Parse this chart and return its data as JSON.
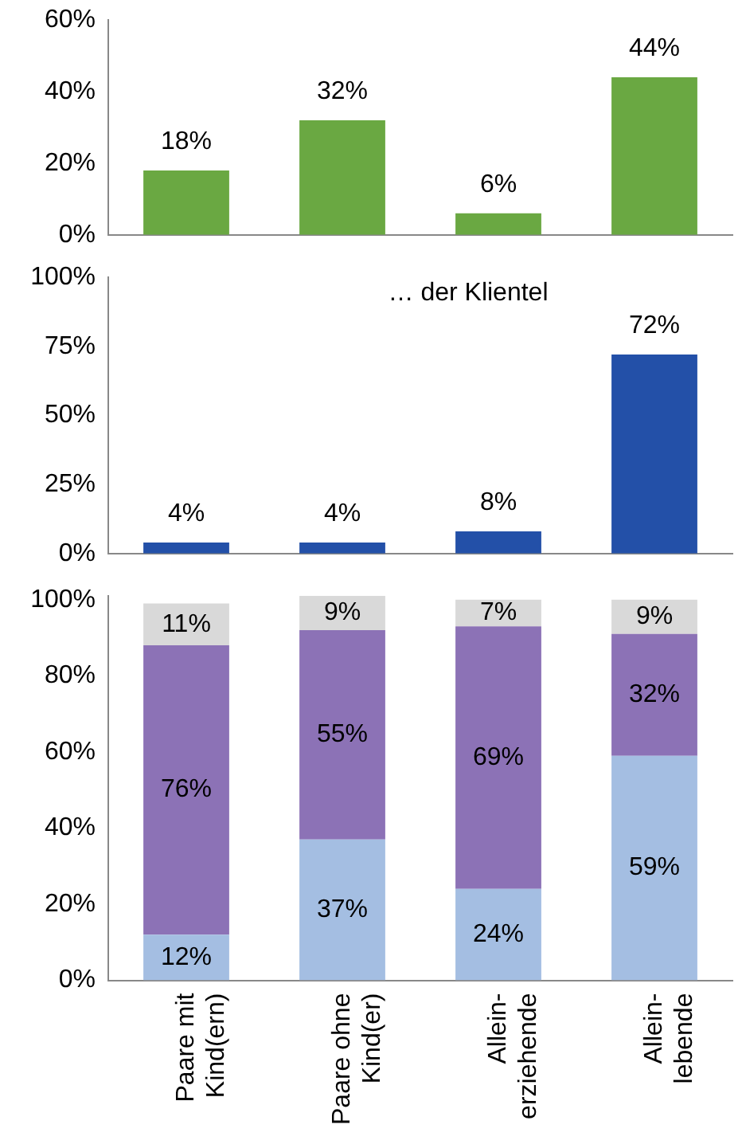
{
  "chart_data": [
    {
      "type": "bar",
      "values": [
        18,
        32,
        6,
        44
      ],
      "color": "#6aa842",
      "value_labels": [
        "18%",
        "32%",
        "6%",
        "44%"
      ],
      "ylim": [
        0,
        60
      ],
      "yticks": [
        {
          "value": 0,
          "label": "0%"
        },
        {
          "value": 20,
          "label": "20%"
        },
        {
          "value": 40,
          "label": "40%"
        },
        {
          "value": 60,
          "label": "60%"
        }
      ],
      "grid": false,
      "legend": false,
      "tick_labels": "y"
    },
    {
      "type": "bar",
      "annotations": [
        "… der Klientel"
      ],
      "values": [
        4,
        4,
        8,
        72
      ],
      "color": "#2350a8",
      "value_labels": [
        "4%",
        "4%",
        "8%",
        "72%"
      ],
      "ylim": [
        0,
        100
      ],
      "yticks": [
        {
          "value": 0,
          "label": "0%"
        },
        {
          "value": 25,
          "label": "25%"
        },
        {
          "value": 50,
          "label": "50%"
        },
        {
          "value": 75,
          "label": "75%"
        },
        {
          "value": 100,
          "label": "100%"
        }
      ],
      "grid": false,
      "legend": false,
      "tick_labels": "y"
    },
    {
      "type": "bar",
      "stacked": true,
      "categories": [
        "Paare mit\nKind(ern)",
        "Paare ohne\nKind(er)",
        "Allein-\nerziehende",
        "Allein-\nlebende"
      ],
      "series": [
        {
          "color": "#a4bee2",
          "values": [
            12,
            37,
            24,
            59
          ],
          "value_labels": [
            "12%",
            "37%",
            "24%",
            "59%"
          ]
        },
        {
          "color": "#8c72b6",
          "values": [
            76,
            55,
            69,
            32
          ],
          "value_labels": [
            "76%",
            "55%",
            "69%",
            "32%"
          ]
        },
        {
          "color": "#d9d9d9",
          "values": [
            11,
            9,
            7,
            9
          ],
          "value_labels": [
            "11%",
            "9%",
            "7%",
            "9%"
          ]
        }
      ],
      "ylim": [
        0,
        101
      ],
      "yticks": [
        {
          "value": 0,
          "label": "0%"
        },
        {
          "value": 20,
          "label": "20%"
        },
        {
          "value": 40,
          "label": "40%"
        },
        {
          "value": 60,
          "label": "60%"
        },
        {
          "value": 80,
          "label": "80%"
        },
        {
          "value": 100,
          "label": "100%"
        }
      ],
      "grid": false,
      "legend": false
    }
  ]
}
